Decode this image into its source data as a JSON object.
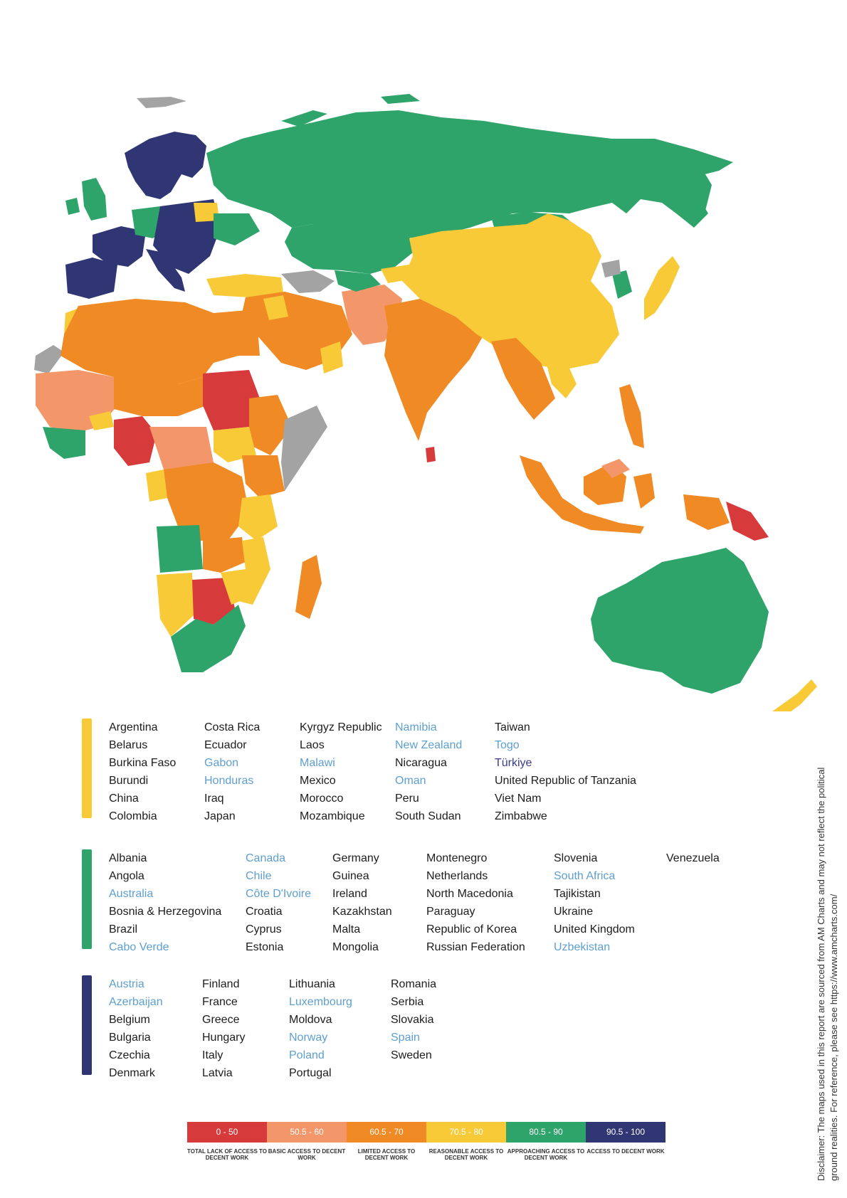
{
  "legend": {
    "yellow": {
      "color": "#f8ca38",
      "columns": [
        [
          {
            "name": "Argentina"
          },
          {
            "name": "Belarus"
          },
          {
            "name": "Burkina Faso"
          },
          {
            "name": "Burundi"
          },
          {
            "name": "China"
          },
          {
            "name": "Colombia"
          }
        ],
        [
          {
            "name": "Costa Rica"
          },
          {
            "name": "Ecuador"
          },
          {
            "name": "Gabon",
            "hl": true
          },
          {
            "name": "Honduras",
            "hl": true
          },
          {
            "name": "Iraq"
          },
          {
            "name": "Japan"
          }
        ],
        [
          {
            "name": "Kyrgyz Republic"
          },
          {
            "name": "Laos"
          },
          {
            "name": "Malawi",
            "hl": true
          },
          {
            "name": "Mexico"
          },
          {
            "name": "Morocco"
          },
          {
            "name": "Mozambique"
          }
        ],
        [
          {
            "name": "Namibia",
            "hl": true
          },
          {
            "name": "New Zealand",
            "hl": true
          },
          {
            "name": "Nicaragua"
          },
          {
            "name": "Oman",
            "hl": true
          },
          {
            "name": "Peru"
          },
          {
            "name": "South Sudan"
          }
        ],
        [
          {
            "name": "Taiwan"
          },
          {
            "name": "Togo",
            "hl": true
          },
          {
            "name": "Türkiye",
            "pu": true
          },
          {
            "name": "United Republic of Tanzania"
          },
          {
            "name": "Viet Nam"
          },
          {
            "name": "Zimbabwe"
          }
        ]
      ]
    },
    "green": {
      "color": "#2ea36a",
      "columns": [
        [
          {
            "name": "Albania"
          },
          {
            "name": "Angola"
          },
          {
            "name": "Australia",
            "hl": true
          },
          {
            "name": "Bosnia & Herzegovina"
          },
          {
            "name": "Brazil"
          },
          {
            "name": "Cabo Verde",
            "hl": true
          }
        ],
        [
          {
            "name": "Canada",
            "hl": true
          },
          {
            "name": "Chile",
            "hl": true
          },
          {
            "name": "Côte D'Ivoire",
            "hl": true
          },
          {
            "name": "Croatia"
          },
          {
            "name": "Cyprus"
          },
          {
            "name": "Estonia"
          }
        ],
        [
          {
            "name": "Germany"
          },
          {
            "name": "Guinea"
          },
          {
            "name": "Ireland"
          },
          {
            "name": "Kazakhstan"
          },
          {
            "name": "Malta"
          },
          {
            "name": "Mongolia"
          }
        ],
        [
          {
            "name": "Montenegro"
          },
          {
            "name": "Netherlands"
          },
          {
            "name": "North Macedonia"
          },
          {
            "name": "Paraguay"
          },
          {
            "name": "Republic of Korea"
          },
          {
            "name": "Russian Federation"
          }
        ],
        [
          {
            "name": "Slovenia"
          },
          {
            "name": "South Africa",
            "hl": true
          },
          {
            "name": "Tajikistan"
          },
          {
            "name": "Ukraine"
          },
          {
            "name": "United Kingdom"
          },
          {
            "name": "Uzbekistan",
            "hl": true
          }
        ],
        [
          {
            "name": "Venezuela"
          }
        ]
      ]
    },
    "navy": {
      "color": "#2f3673",
      "columns": [
        [
          {
            "name": "Austria",
            "hl": true
          },
          {
            "name": "Azerbaijan",
            "hl": true
          },
          {
            "name": "Belgium"
          },
          {
            "name": "Bulgaria"
          },
          {
            "name": "Czechia"
          },
          {
            "name": "Denmark"
          }
        ],
        [
          {
            "name": "Finland"
          },
          {
            "name": "France"
          },
          {
            "name": "Greece"
          },
          {
            "name": "Hungary"
          },
          {
            "name": "Italy"
          },
          {
            "name": "Latvia"
          }
        ],
        [
          {
            "name": "Lithuania"
          },
          {
            "name": "Luxembourg",
            "hl": true
          },
          {
            "name": "Moldova"
          },
          {
            "name": "Norway",
            "hl": true
          },
          {
            "name": "Poland",
            "hl": true
          },
          {
            "name": "Portugal"
          }
        ],
        [
          {
            "name": "Romania"
          },
          {
            "name": "Serbia"
          },
          {
            "name": "Slovakia"
          },
          {
            "name": "Spain",
            "hl": true
          },
          {
            "name": "Sweden"
          }
        ]
      ]
    }
  },
  "scale": [
    {
      "range": "0 - 50",
      "caption": "TOTAL LACK OF ACCESS TO DECENT WORK",
      "color": "#d63a3a"
    },
    {
      "range": "50.5 - 60",
      "caption": "BASIC ACCESS TO DECENT WORK",
      "color": "#f3966a"
    },
    {
      "range": "60.5 - 70",
      "caption": "LIMITED ACCESS TO DECENT WORK",
      "color": "#f08a24"
    },
    {
      "range": "70.5 - 80",
      "caption": "REASONABLE ACCESS TO DECENT WORK",
      "color": "#f8ca38"
    },
    {
      "range": "80.5 - 90",
      "caption": "APPROACHING ACCESS TO DECENT WORK",
      "color": "#2ea36a"
    },
    {
      "range": "90.5 - 100",
      "caption": "ACCESS TO DECENT WORK",
      "color": "#2f3673"
    }
  ],
  "disclaimer": "Disclaimer: The maps used in this report are sourced from AM Charts and may not reflect the political ground realities. For reference, please see https://www.amcharts.com/",
  "map_colors": {
    "red": "#d63a3a",
    "salmon": "#f3966a",
    "orange": "#f08a24",
    "yellow": "#f8ca38",
    "green": "#2ea36a",
    "navy": "#2f3673",
    "grey": "#a3a3a3"
  }
}
